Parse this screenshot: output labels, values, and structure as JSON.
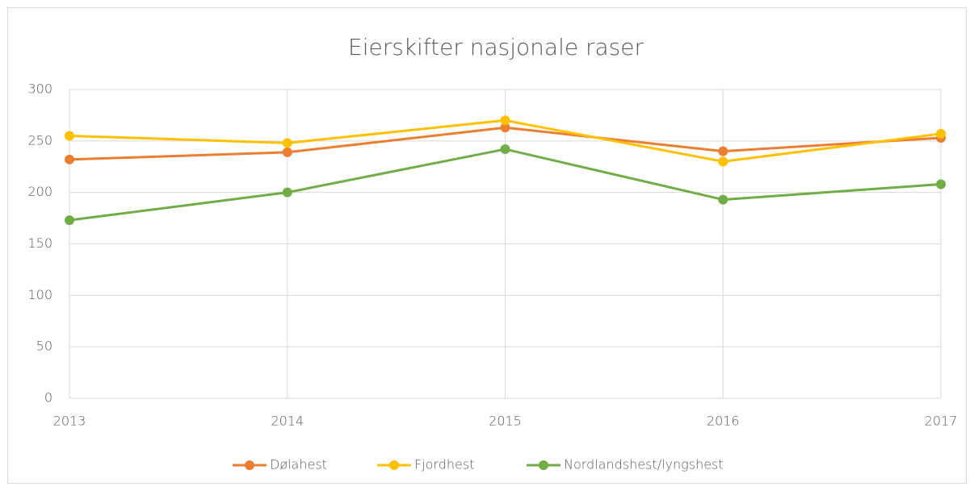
{
  "chart_data": {
    "type": "line",
    "title": "Eierskifter nasjonale raser",
    "x": [
      2013,
      2014,
      2015,
      2016,
      2017
    ],
    "xlim": [
      2013,
      2017
    ],
    "xticks": [
      2013,
      2014,
      2015,
      2016,
      2017
    ],
    "ylim": [
      0,
      300
    ],
    "yticks": [
      0,
      50,
      100,
      150,
      200,
      250,
      300
    ],
    "grid": true,
    "legend": "bottom",
    "series": [
      {
        "name": "Dølahest",
        "color": "#ED7D31",
        "values": [
          232,
          239,
          263,
          240,
          253
        ]
      },
      {
        "name": "Fjordhest",
        "color": "#FFC000",
        "values": [
          255,
          248,
          270,
          230,
          257
        ]
      },
      {
        "name": "Nordlandshest/lyngshest",
        "color": "#70AD47",
        "values": [
          173,
          200,
          242,
          193,
          208
        ]
      }
    ]
  }
}
